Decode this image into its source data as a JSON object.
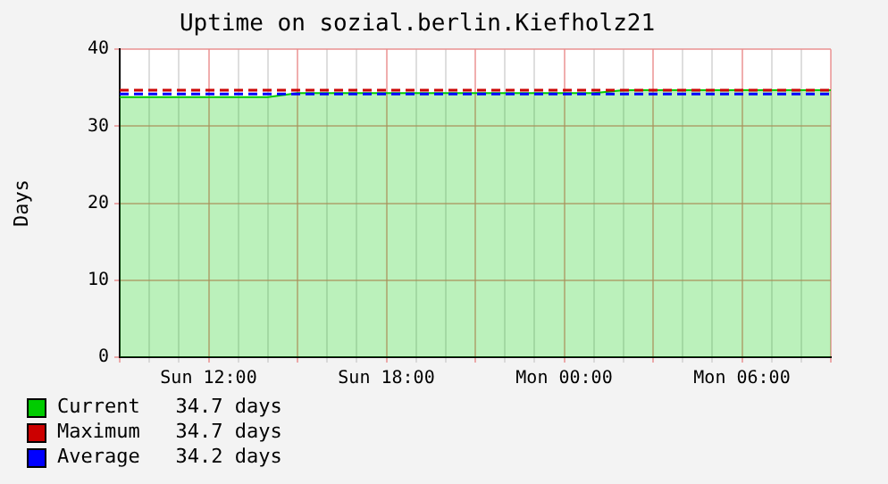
{
  "chart_data": {
    "type": "line",
    "title": "Uptime on sozial.berlin.Kiefholz21",
    "ylabel": "Days",
    "categories": [
      null,
      null,
      null,
      "Sun 12:00",
      null,
      null,
      null,
      null,
      null,
      "Sun 18:00",
      null,
      null,
      null,
      null,
      null,
      "Mon 00:00",
      null,
      null,
      null,
      null,
      null,
      "Mon 06:00",
      null,
      null,
      null
    ],
    "ylim": [
      0,
      40
    ],
    "yticks": [
      0,
      10,
      20,
      30,
      40
    ],
    "grid": true,
    "legend": "bottom left",
    "series": [
      {
        "name": "Current   34.7 days",
        "type": "area",
        "color": "#00cc00",
        "values": [
          33.8,
          33.8,
          33.8,
          33.8,
          33.8,
          33.8,
          34.3,
          34.3,
          34.3,
          34.3,
          34.3,
          34.3,
          34.3,
          34.3,
          34.3,
          34.3,
          34.3,
          34.7,
          34.7,
          34.7,
          34.7,
          34.7,
          34.7,
          34.7,
          34.7
        ]
      },
      {
        "name": "Maximum   34.7 days",
        "type": "line",
        "line_style": "dashed",
        "color": "#cc0000",
        "values": [
          34.7,
          34.7,
          34.7,
          34.7,
          34.7,
          34.7,
          34.7,
          34.7,
          34.7,
          34.7,
          34.7,
          34.7,
          34.7,
          34.7,
          34.7,
          34.7,
          34.7,
          34.7,
          34.7,
          34.7,
          34.7,
          34.7,
          34.7,
          34.7,
          34.7
        ]
      },
      {
        "name": "Average   34.2 days",
        "type": "line",
        "line_style": "dashed",
        "color": "#0000ff",
        "values": [
          34.2,
          34.2,
          34.2,
          34.2,
          34.2,
          34.2,
          34.2,
          34.2,
          34.2,
          34.2,
          34.2,
          34.2,
          34.2,
          34.2,
          34.2,
          34.2,
          34.2,
          34.2,
          34.2,
          34.2,
          34.2,
          34.2,
          34.2,
          34.2,
          34.2
        ]
      }
    ]
  }
}
